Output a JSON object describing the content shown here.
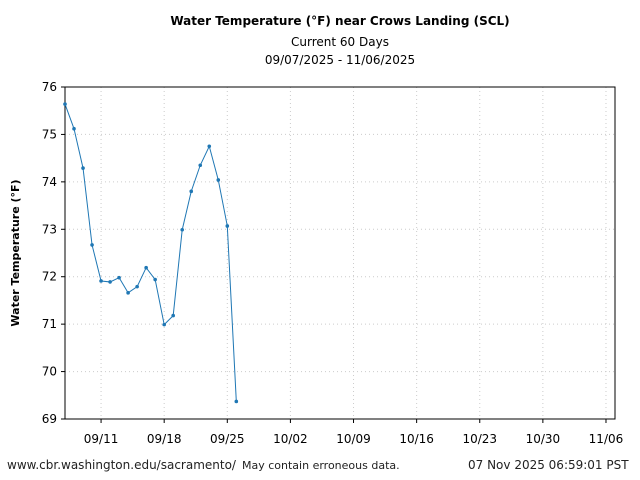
{
  "chart_data": {
    "type": "line",
    "title": "Water Temperature (°F) near Crows Landing (SCL)",
    "subtitle": "Current 60 Days",
    "date_range": "09/07/2025 - 11/06/2025",
    "ylabel": "Water Temperature (°F)",
    "xlabel": "",
    "ylim": [
      69,
      76
    ],
    "xlim": [
      "2025-09-07",
      "2025-11-07"
    ],
    "y_ticks": [
      "69",
      "70",
      "71",
      "72",
      "73",
      "74",
      "75",
      "76"
    ],
    "x_ticks": [
      {
        "date": "2025-09-11",
        "label": "09/11"
      },
      {
        "date": "2025-09-18",
        "label": "09/18"
      },
      {
        "date": "2025-09-25",
        "label": "09/25"
      },
      {
        "date": "2025-10-02",
        "label": "10/02"
      },
      {
        "date": "2025-10-09",
        "label": "10/09"
      },
      {
        "date": "2025-10-16",
        "label": "10/16"
      },
      {
        "date": "2025-10-23",
        "label": "10/23"
      },
      {
        "date": "2025-10-30",
        "label": "10/30"
      },
      {
        "date": "2025-11-06",
        "label": "11/06"
      }
    ],
    "grid": true,
    "color": "#1f77b4",
    "series": [
      {
        "x": [
          "2025-09-07",
          "2025-09-08",
          "2025-09-09",
          "2025-09-10",
          "2025-09-11",
          "2025-09-12",
          "2025-09-13",
          "2025-09-14",
          "2025-09-15",
          "2025-09-16",
          "2025-09-17",
          "2025-09-18",
          "2025-09-19",
          "2025-09-20",
          "2025-09-21",
          "2025-09-22",
          "2025-09-23",
          "2025-09-24",
          "2025-09-25",
          "2025-09-26"
        ],
        "y": [
          75.64,
          75.12,
          74.29,
          72.67,
          71.91,
          71.89,
          71.98,
          71.66,
          71.79,
          72.19,
          71.94,
          70.99,
          71.18,
          72.99,
          73.8,
          74.35,
          74.75,
          74.04,
          73.07,
          69.37
        ]
      }
    ]
  },
  "footer": {
    "url": "www.cbr.washington.edu/sacramento/",
    "disclaimer": "May contain erroneous data.",
    "timestamp": "07 Nov 2025 06:59:01 PST"
  }
}
